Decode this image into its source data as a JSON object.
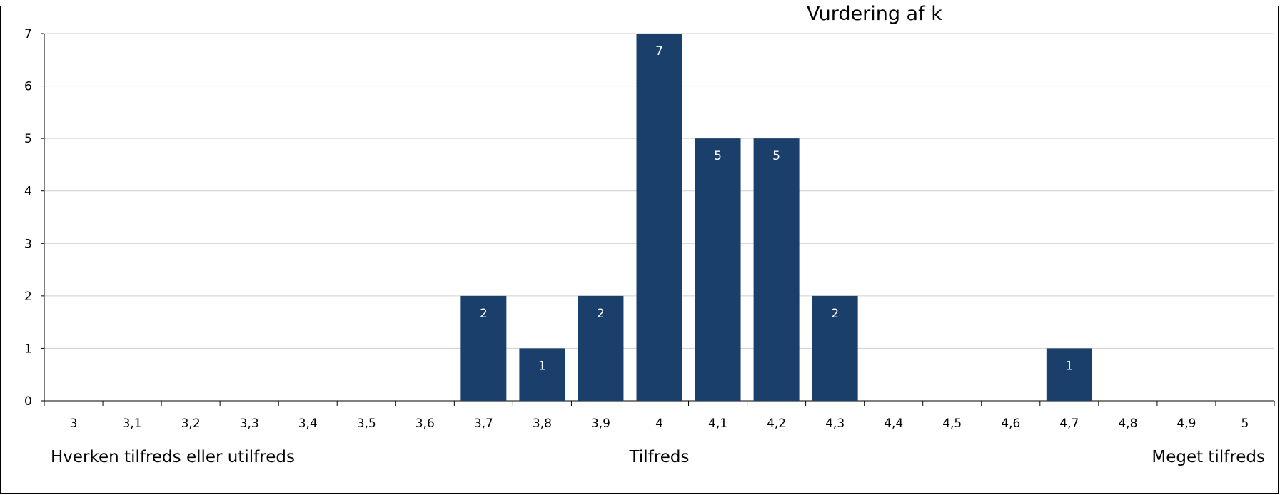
{
  "chart_data": {
    "type": "bar",
    "title_partial": "Vurdering af k",
    "categories": [
      "3",
      "3,1",
      "3,2",
      "3,3",
      "3,4",
      "3,5",
      "3,6",
      "3,7",
      "3,8",
      "3,9",
      "4",
      "4,1",
      "4,2",
      "4,3",
      "4,4",
      "4,5",
      "4,6",
      "4,7",
      "4,8",
      "4,9",
      "5"
    ],
    "series": [
      {
        "values": [
          0,
          0,
          0,
          0,
          0,
          0,
          0,
          2,
          1,
          2,
          7,
          5,
          5,
          2,
          0,
          0,
          0,
          1,
          0,
          0,
          0
        ],
        "color": "#1a3f6b"
      }
    ],
    "ylim": [
      0,
      7
    ],
    "y_ticks": [
      "0",
      "1",
      "2",
      "3",
      "4",
      "5",
      "6",
      "7"
    ],
    "grid": true,
    "group_labels": [
      "Hverken tilfreds eller utilfreds",
      "Tilfreds",
      "Meget tilfreds"
    ]
  }
}
